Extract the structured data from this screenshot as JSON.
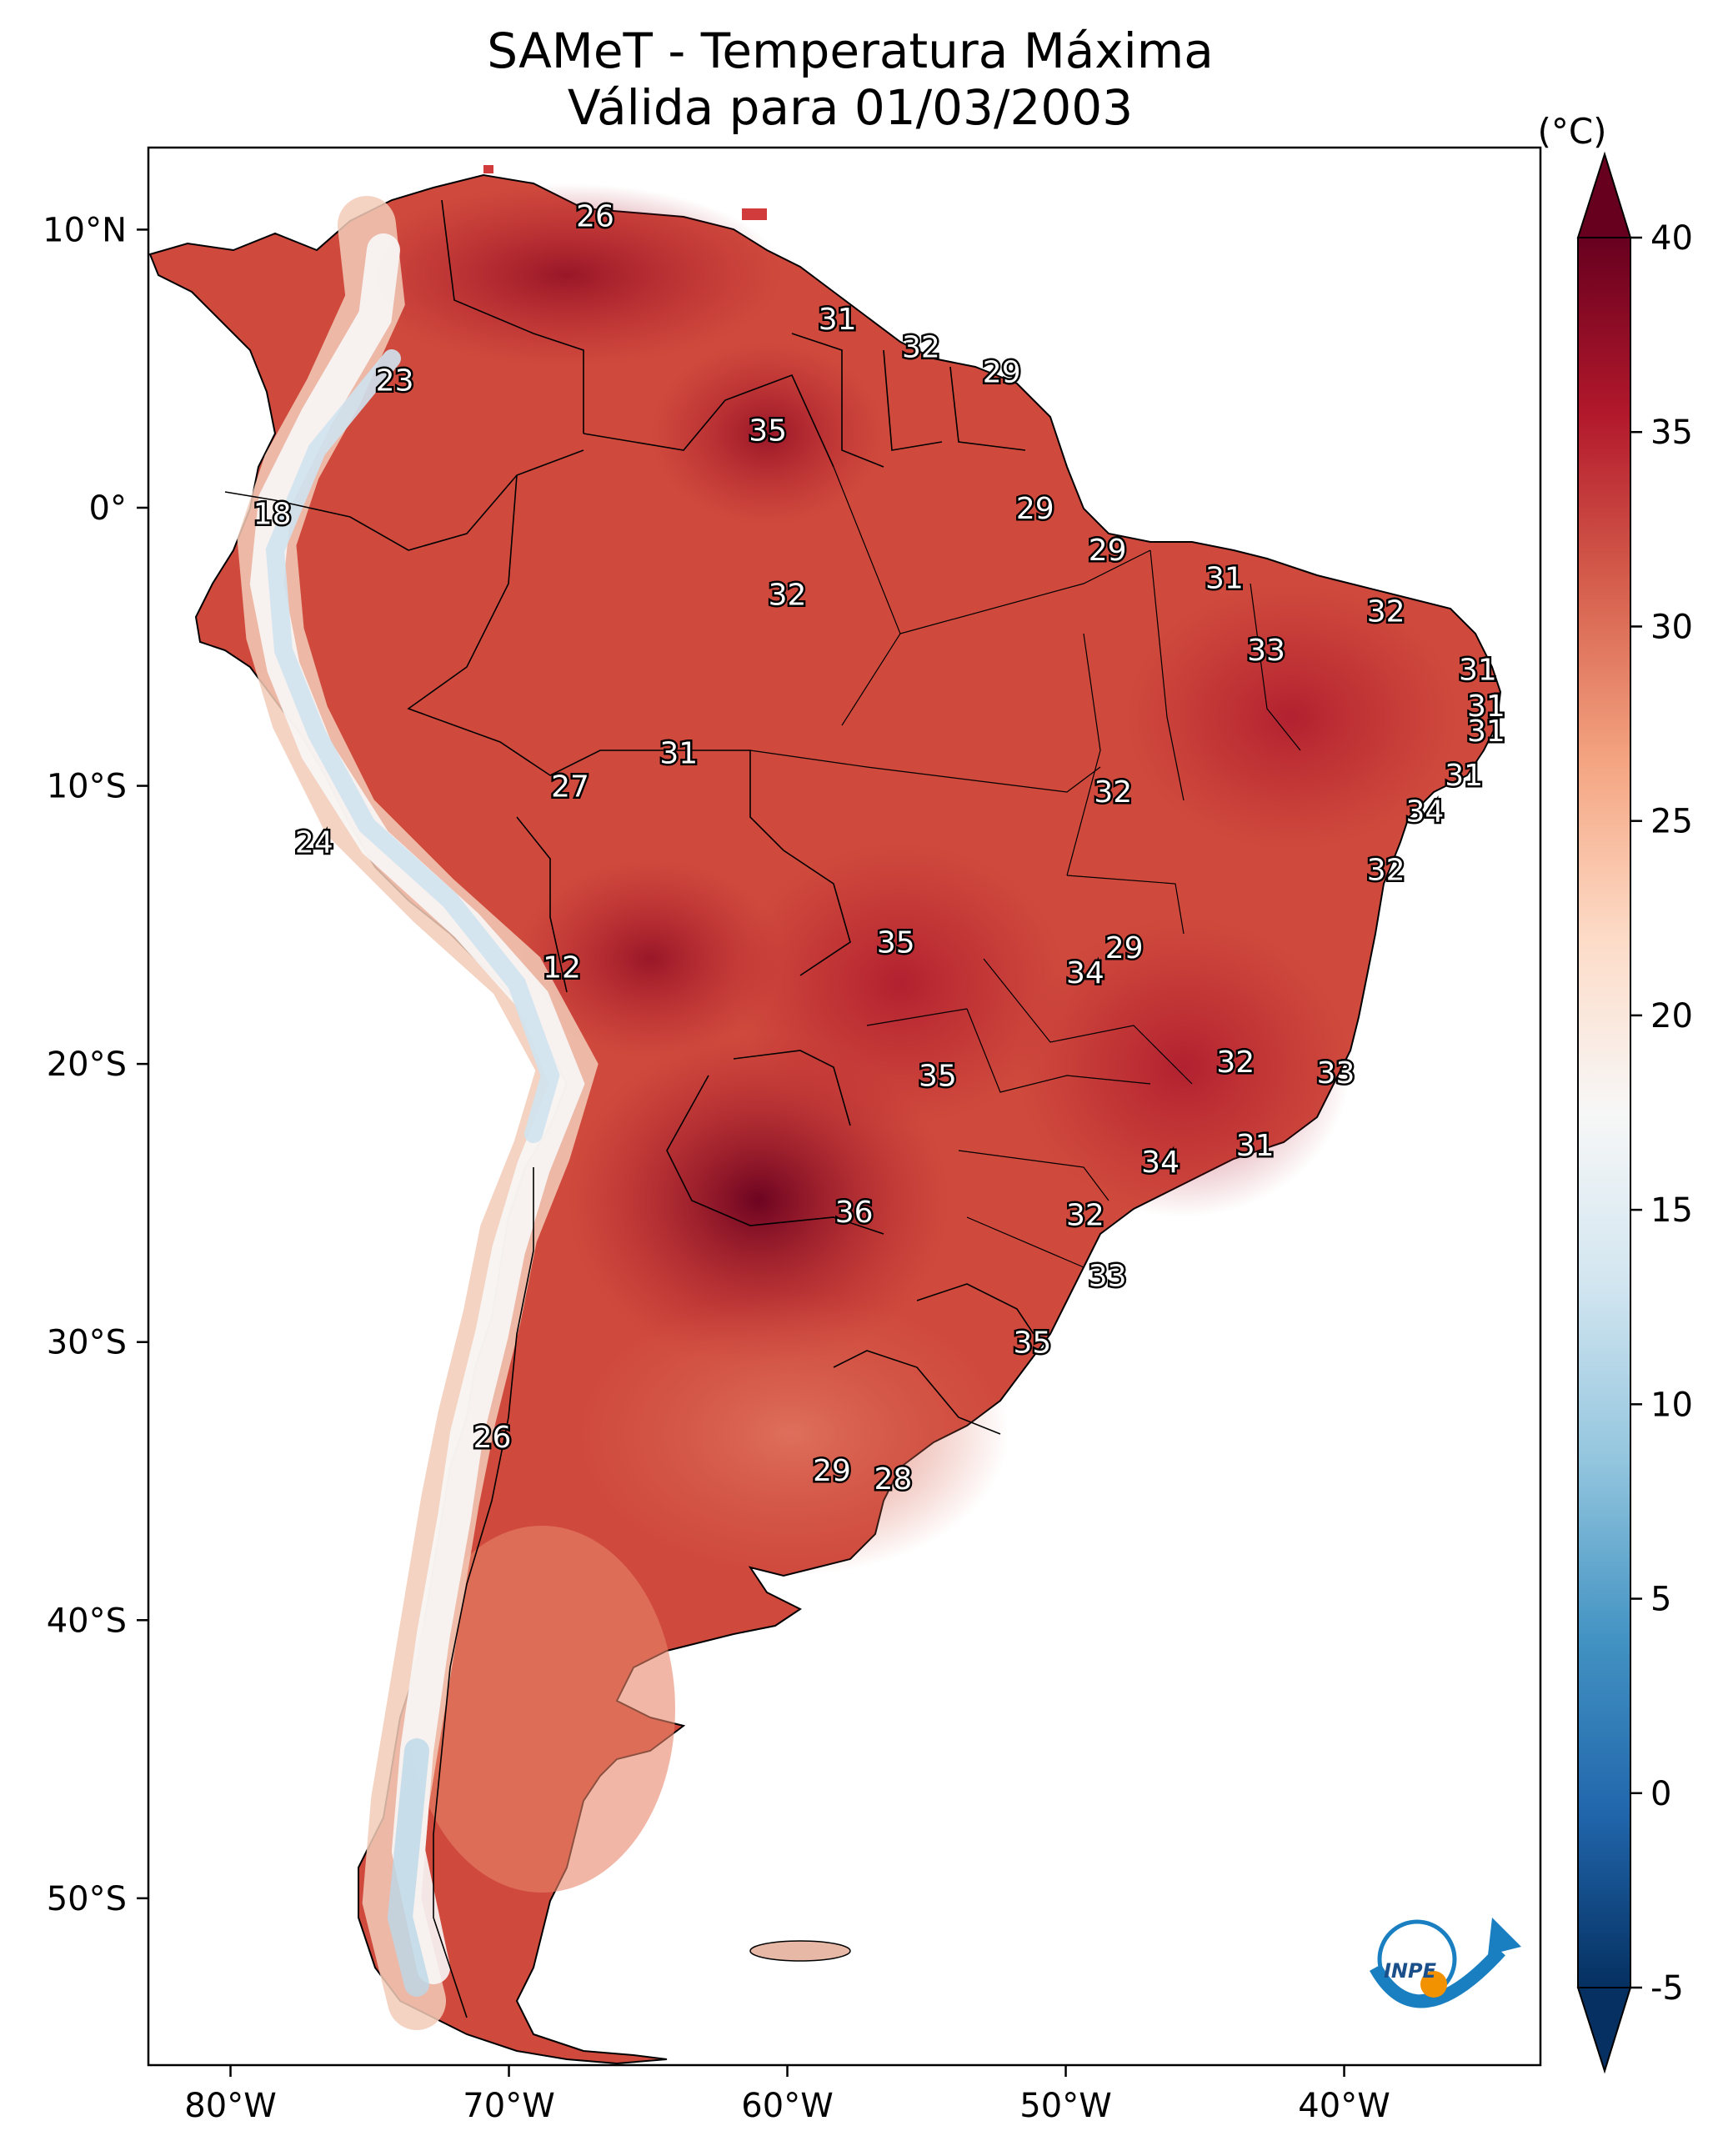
{
  "title": {
    "line1": "SAMeT - Temperatura Máxima",
    "line2": "Válida para 01/03/2003"
  },
  "map": {
    "lon_range": [
      -82.95,
      -32.95
    ],
    "lat_range": [
      -56.0,
      12.95
    ],
    "lat_ticks": [
      {
        "value": 10,
        "label": "10°N"
      },
      {
        "value": 0,
        "label": "0°"
      },
      {
        "value": -10,
        "label": "10°S"
      },
      {
        "value": -20,
        "label": "20°S"
      },
      {
        "value": -30,
        "label": "30°S"
      },
      {
        "value": -40,
        "label": "40°S"
      },
      {
        "value": -50,
        "label": "50°S"
      }
    ],
    "lon_ticks": [
      {
        "value": -80,
        "label": "80°W"
      },
      {
        "value": -70,
        "label": "70°W"
      },
      {
        "value": -60,
        "label": "60°W"
      },
      {
        "value": -50,
        "label": "50°W"
      },
      {
        "value": -40,
        "label": "40°W"
      }
    ],
    "capital_labels": [
      {
        "lon": -66.9,
        "lat": 10.5,
        "text": "26"
      },
      {
        "lon": -74.1,
        "lat": 4.6,
        "text": "23"
      },
      {
        "lon": -78.5,
        "lat": -0.2,
        "text": "18"
      },
      {
        "lon": -77.0,
        "lat": -12.0,
        "text": "24"
      },
      {
        "lon": -68.1,
        "lat": -16.5,
        "text": "12"
      },
      {
        "lon": -70.6,
        "lat": -33.4,
        "text": "26"
      },
      {
        "lon": -58.2,
        "lat": 6.8,
        "text": "31"
      },
      {
        "lon": -55.2,
        "lat": 5.8,
        "text": "32"
      },
      {
        "lon": -52.3,
        "lat": 4.9,
        "text": "29"
      },
      {
        "lon": -60.7,
        "lat": 2.8,
        "text": "35"
      },
      {
        "lon": -51.1,
        "lat": 0.0,
        "text": "29"
      },
      {
        "lon": -48.5,
        "lat": -1.5,
        "text": "29"
      },
      {
        "lon": -60.0,
        "lat": -3.1,
        "text": "32"
      },
      {
        "lon": -44.3,
        "lat": -2.5,
        "text": "31"
      },
      {
        "lon": -38.5,
        "lat": -3.7,
        "text": "32"
      },
      {
        "lon": -42.8,
        "lat": -5.1,
        "text": "33"
      },
      {
        "lon": -35.2,
        "lat": -5.8,
        "text": "31"
      },
      {
        "lon": -34.9,
        "lat": -7.1,
        "text": "31"
      },
      {
        "lon": -34.9,
        "lat": -8.0,
        "text": "31"
      },
      {
        "lon": -35.7,
        "lat": -9.6,
        "text": "31"
      },
      {
        "lon": -37.1,
        "lat": -10.9,
        "text": "34"
      },
      {
        "lon": -38.5,
        "lat": -13.0,
        "text": "32"
      },
      {
        "lon": -63.9,
        "lat": -8.8,
        "text": "31"
      },
      {
        "lon": -67.8,
        "lat": -10.0,
        "text": "27"
      },
      {
        "lon": -48.3,
        "lat": -10.2,
        "text": "32"
      },
      {
        "lon": -56.1,
        "lat": -15.6,
        "text": "35"
      },
      {
        "lon": -47.9,
        "lat": -15.8,
        "text": "29"
      },
      {
        "lon": -49.3,
        "lat": -16.7,
        "text": "34"
      },
      {
        "lon": -43.9,
        "lat": -19.9,
        "text": "32"
      },
      {
        "lon": -40.3,
        "lat": -20.3,
        "text": "33"
      },
      {
        "lon": -54.6,
        "lat": -20.4,
        "text": "35"
      },
      {
        "lon": -46.6,
        "lat": -23.5,
        "text": "34"
      },
      {
        "lon": -43.2,
        "lat": -22.9,
        "text": "31"
      },
      {
        "lon": -57.6,
        "lat": -25.3,
        "text": "36"
      },
      {
        "lon": -49.3,
        "lat": -25.4,
        "text": "32"
      },
      {
        "lon": -48.5,
        "lat": -27.6,
        "text": "33"
      },
      {
        "lon": -51.2,
        "lat": -30.0,
        "text": "35"
      },
      {
        "lon": -58.4,
        "lat": -34.6,
        "text": "29"
      },
      {
        "lon": -56.2,
        "lat": -34.9,
        "text": "28"
      }
    ],
    "land_color": "#d6604d",
    "ocean_color": "#ffffff"
  },
  "colorbar": {
    "unit_label": "(°C)",
    "vmin": -5,
    "vmax": 40,
    "ticks": [
      {
        "value": 40,
        "label": "40"
      },
      {
        "value": 35,
        "label": "35"
      },
      {
        "value": 30,
        "label": "30"
      },
      {
        "value": 25,
        "label": "25"
      },
      {
        "value": 20,
        "label": "20"
      },
      {
        "value": 15,
        "label": "15"
      },
      {
        "value": 10,
        "label": "10"
      },
      {
        "value": 5,
        "label": "5"
      },
      {
        "value": 0,
        "label": "0"
      },
      {
        "value": -5,
        "label": "-5"
      }
    ],
    "colors": [
      "#053061",
      "#2166ac",
      "#4393c3",
      "#92c5de",
      "#d1e5f0",
      "#f7f7f7",
      "#fddbc7",
      "#f4a582",
      "#d6604d",
      "#b2182b",
      "#67001f"
    ]
  },
  "logo": {
    "text": "INPE",
    "arrow_color": "#1a7fc1",
    "dot_color": "#f39200"
  }
}
